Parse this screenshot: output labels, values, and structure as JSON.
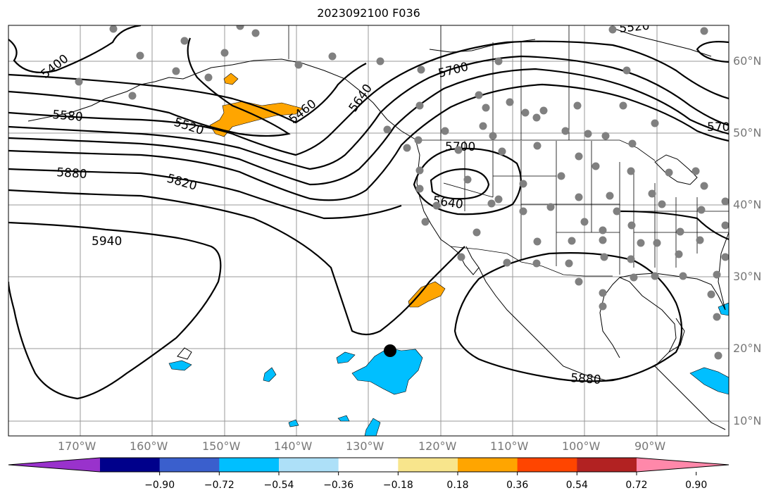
{
  "title": "2023092100 F036",
  "colors": {
    "contour": "#000000",
    "grid": "#999999",
    "station_dot": "#808080",
    "positive_anomaly": "#FFA500",
    "negative_anomaly": "#00BFFF",
    "storm_marker": "#000000",
    "colorbar": [
      "#9932CC",
      "#00008B",
      "#3A5FCD",
      "#00BFFF",
      "#ADE0F8",
      "#FFFFFF",
      "#F8E58C",
      "#FFA500",
      "#FF4500",
      "#B22222",
      "#FF88AA"
    ]
  },
  "map": {
    "lon_labels": [
      "170°W",
      "160°W",
      "150°W",
      "140°W",
      "130°W",
      "120°W",
      "110°W",
      "100°W",
      "90°W"
    ],
    "lat_labels": [
      "60°N",
      "50°N",
      "40°N",
      "30°N",
      "20°N",
      "10°N"
    ],
    "lon_range": [
      -180,
      -80
    ],
    "lat_range": [
      8,
      65
    ],
    "contour_labels": [
      "5400",
      "5580",
      "5520",
      "5460",
      "5640",
      "5700",
      "5700",
      "5640",
      "5880",
      "5820",
      "5940",
      "5880",
      "5520",
      "570"
    ],
    "storm_marker": {
      "lon": -127.2,
      "lat": 19.7
    }
  },
  "colorbar": {
    "ticks": [
      "−0.90",
      "−0.72",
      "−0.54",
      "−0.36",
      "−0.18",
      "0.18",
      "0.36",
      "0.54",
      "0.72",
      "0.90"
    ]
  }
}
